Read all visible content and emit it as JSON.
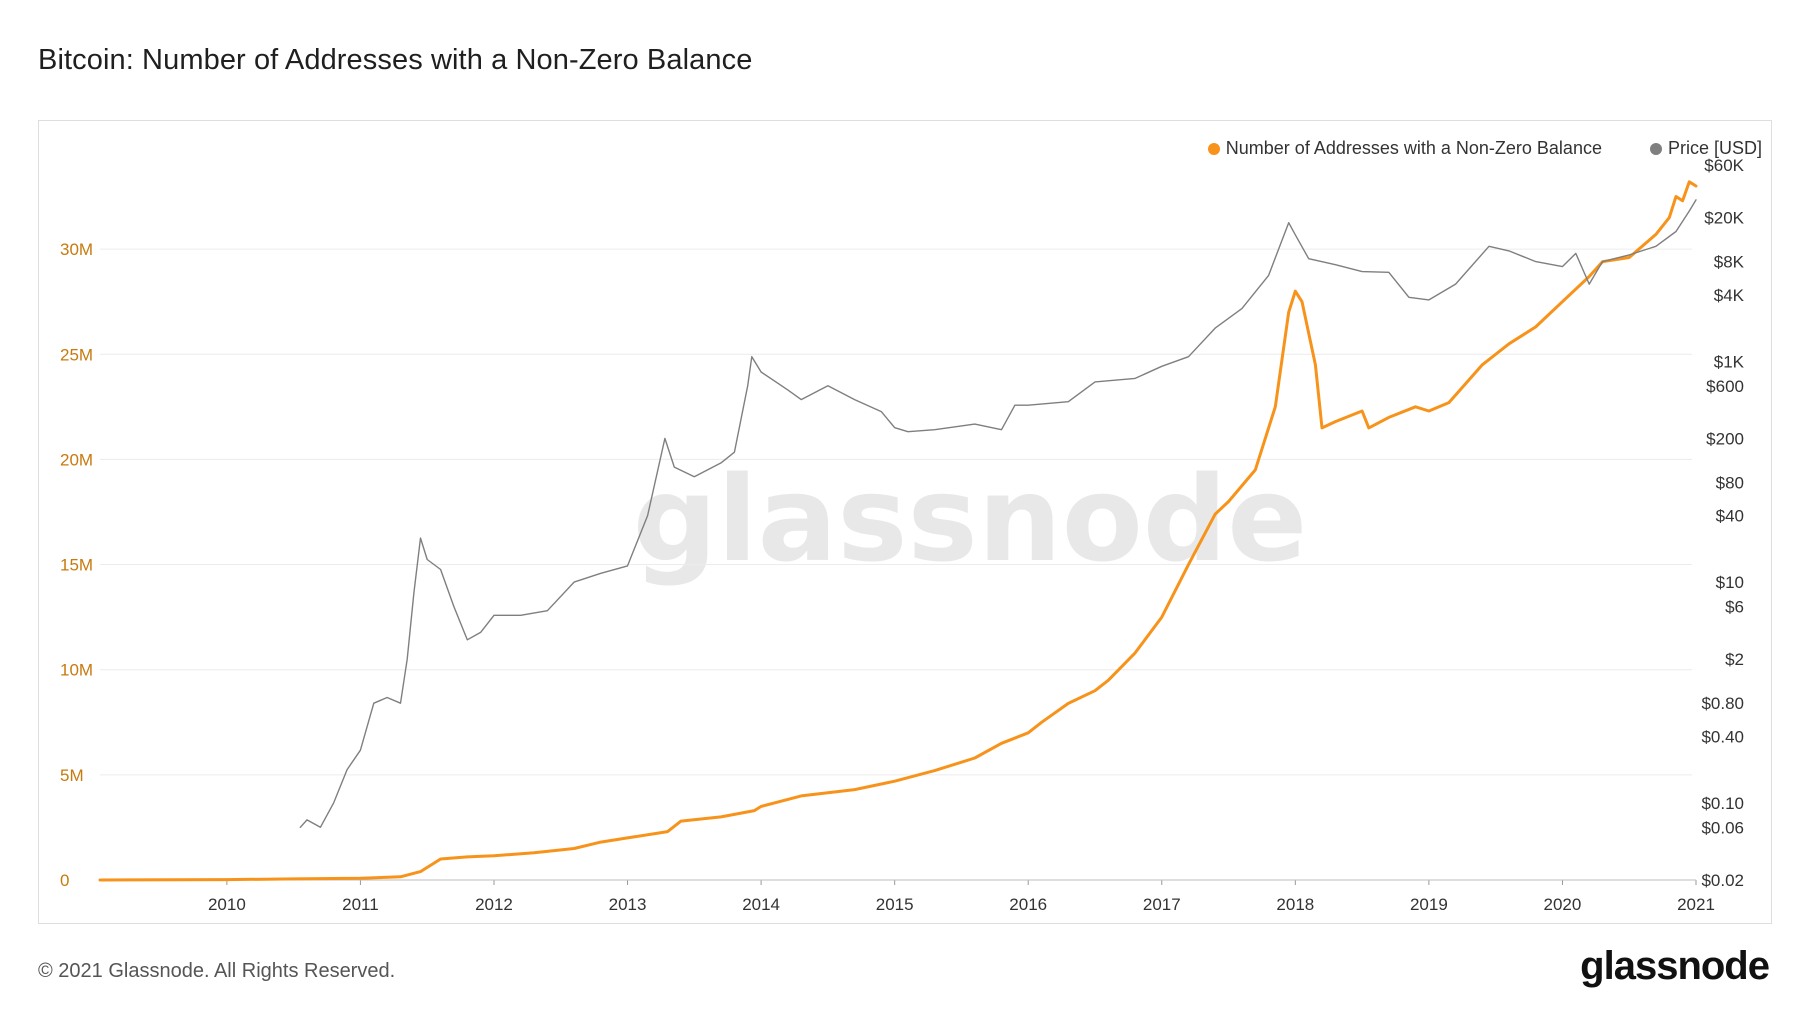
{
  "title": "Bitcoin: Number of Addresses with a Non-Zero Balance",
  "footer": {
    "copyright": "© 2021 Glassnode. All Rights Reserved.",
    "logo": "glassnode"
  },
  "watermark": "glassnode",
  "chart_data": {
    "type": "line",
    "title": "Bitcoin: Number of Addresses with a Non-Zero Balance",
    "grid": true,
    "legend_position": "top-right",
    "x_axis": {
      "ticks": [
        "2010",
        "2011",
        "2012",
        "2013",
        "2014",
        "2015",
        "2016",
        "2017",
        "2018",
        "2019",
        "2020",
        "2021"
      ],
      "range": [
        2009.05,
        2021.0
      ]
    },
    "y_left": {
      "ticks": [
        "0",
        "5M",
        "10M",
        "15M",
        "20M",
        "25M",
        "30M"
      ],
      "tick_values": [
        0,
        5000000,
        10000000,
        15000000,
        20000000,
        25000000,
        30000000
      ],
      "range": [
        0,
        34000000
      ],
      "color": "#c77a0e"
    },
    "y_right": {
      "scale": "log",
      "ticks": [
        "$60K",
        "$20K",
        "$8K",
        "$4K",
        "$1K",
        "$600",
        "$200",
        "$80",
        "$40",
        "$10",
        "$6",
        "$2",
        "$0.80",
        "$0.40",
        "$0.10",
        "$0.06",
        "$0.02"
      ],
      "tick_values": [
        60000,
        20000,
        8000,
        4000,
        1000,
        600,
        200,
        80,
        40,
        10,
        6,
        2,
        0.8,
        0.4,
        0.1,
        0.06,
        0.02
      ],
      "range": [
        0.02,
        60000
      ]
    },
    "series": [
      {
        "name": "Number of Addresses with a Non-Zero Balance",
        "color": "#f7931a",
        "axis": "left",
        "points": [
          [
            2009.05,
            0
          ],
          [
            2010.0,
            20000
          ],
          [
            2010.5,
            50000
          ],
          [
            2011.0,
            80000
          ],
          [
            2011.3,
            150000
          ],
          [
            2011.45,
            400000
          ],
          [
            2011.6,
            1000000
          ],
          [
            2011.8,
            1100000
          ],
          [
            2012.0,
            1150000
          ],
          [
            2012.3,
            1300000
          ],
          [
            2012.6,
            1500000
          ],
          [
            2012.8,
            1800000
          ],
          [
            2013.0,
            2000000
          ],
          [
            2013.3,
            2300000
          ],
          [
            2013.4,
            2800000
          ],
          [
            2013.7,
            3000000
          ],
          [
            2013.95,
            3300000
          ],
          [
            2014.0,
            3500000
          ],
          [
            2014.3,
            4000000
          ],
          [
            2014.7,
            4300000
          ],
          [
            2015.0,
            4700000
          ],
          [
            2015.3,
            5200000
          ],
          [
            2015.6,
            5800000
          ],
          [
            2015.8,
            6500000
          ],
          [
            2016.0,
            7000000
          ],
          [
            2016.1,
            7500000
          ],
          [
            2016.3,
            8400000
          ],
          [
            2016.5,
            9000000
          ],
          [
            2016.6,
            9500000
          ],
          [
            2016.8,
            10800000
          ],
          [
            2017.0,
            12500000
          ],
          [
            2017.2,
            15000000
          ],
          [
            2017.4,
            17400000
          ],
          [
            2017.5,
            18000000
          ],
          [
            2017.7,
            19500000
          ],
          [
            2017.85,
            22500000
          ],
          [
            2017.95,
            27000000
          ],
          [
            2018.0,
            28000000
          ],
          [
            2018.05,
            27500000
          ],
          [
            2018.15,
            24500000
          ],
          [
            2018.2,
            21500000
          ],
          [
            2018.3,
            21800000
          ],
          [
            2018.5,
            22300000
          ],
          [
            2018.55,
            21500000
          ],
          [
            2018.7,
            22000000
          ],
          [
            2018.9,
            22500000
          ],
          [
            2019.0,
            22300000
          ],
          [
            2019.15,
            22700000
          ],
          [
            2019.4,
            24500000
          ],
          [
            2019.6,
            25500000
          ],
          [
            2019.8,
            26300000
          ],
          [
            2020.0,
            27500000
          ],
          [
            2020.2,
            28700000
          ],
          [
            2020.3,
            29400000
          ],
          [
            2020.5,
            29600000
          ],
          [
            2020.7,
            30700000
          ],
          [
            2020.8,
            31500000
          ],
          [
            2020.85,
            32500000
          ],
          [
            2020.9,
            32300000
          ],
          [
            2020.95,
            33200000
          ],
          [
            2021.0,
            33000000
          ]
        ]
      },
      {
        "name": "Price [USD]",
        "color": "#7f7f7f",
        "axis": "right",
        "points": [
          [
            2010.55,
            0.06
          ],
          [
            2010.6,
            0.07
          ],
          [
            2010.7,
            0.06
          ],
          [
            2010.8,
            0.1
          ],
          [
            2010.9,
            0.2
          ],
          [
            2011.0,
            0.3
          ],
          [
            2011.1,
            0.8
          ],
          [
            2011.2,
            0.9
          ],
          [
            2011.3,
            0.8
          ],
          [
            2011.35,
            2.0
          ],
          [
            2011.4,
            8.0
          ],
          [
            2011.45,
            25.0
          ],
          [
            2011.5,
            16.0
          ],
          [
            2011.6,
            13.0
          ],
          [
            2011.7,
            6.0
          ],
          [
            2011.8,
            3.0
          ],
          [
            2011.9,
            3.5
          ],
          [
            2012.0,
            5.0
          ],
          [
            2012.2,
            5.0
          ],
          [
            2012.4,
            5.5
          ],
          [
            2012.6,
            10.0
          ],
          [
            2012.8,
            12.0
          ],
          [
            2013.0,
            14.0
          ],
          [
            2013.15,
            40.0
          ],
          [
            2013.28,
            200.0
          ],
          [
            2013.35,
            110.0
          ],
          [
            2013.5,
            90.0
          ],
          [
            2013.7,
            120.0
          ],
          [
            2013.8,
            150.0
          ],
          [
            2013.9,
            600.0
          ],
          [
            2013.93,
            1100.0
          ],
          [
            2014.0,
            800.0
          ],
          [
            2014.2,
            550.0
          ],
          [
            2014.3,
            450.0
          ],
          [
            2014.5,
            600.0
          ],
          [
            2014.7,
            450.0
          ],
          [
            2014.9,
            350.0
          ],
          [
            2015.0,
            250.0
          ],
          [
            2015.1,
            230.0
          ],
          [
            2015.3,
            240.0
          ],
          [
            2015.6,
            270.0
          ],
          [
            2015.8,
            240.0
          ],
          [
            2015.9,
            400.0
          ],
          [
            2016.0,
            400.0
          ],
          [
            2016.3,
            430.0
          ],
          [
            2016.5,
            650.0
          ],
          [
            2016.8,
            700.0
          ],
          [
            2017.0,
            900.0
          ],
          [
            2017.2,
            1100.0
          ],
          [
            2017.4,
            2000.0
          ],
          [
            2017.6,
            3000.0
          ],
          [
            2017.8,
            6000.0
          ],
          [
            2017.95,
            18000.0
          ],
          [
            2018.0,
            14000.0
          ],
          [
            2018.1,
            8500.0
          ],
          [
            2018.3,
            7500.0
          ],
          [
            2018.5,
            6500.0
          ],
          [
            2018.7,
            6400.0
          ],
          [
            2018.85,
            3800.0
          ],
          [
            2019.0,
            3600.0
          ],
          [
            2019.2,
            5000.0
          ],
          [
            2019.45,
            11000.0
          ],
          [
            2019.6,
            10000.0
          ],
          [
            2019.8,
            8000.0
          ],
          [
            2020.0,
            7200.0
          ],
          [
            2020.1,
            9500.0
          ],
          [
            2020.2,
            5000.0
          ],
          [
            2020.3,
            8000.0
          ],
          [
            2020.5,
            9200.0
          ],
          [
            2020.7,
            11000.0
          ],
          [
            2020.85,
            15000.0
          ],
          [
            2020.95,
            23000.0
          ],
          [
            2021.0,
            29000.0
          ]
        ]
      }
    ]
  }
}
